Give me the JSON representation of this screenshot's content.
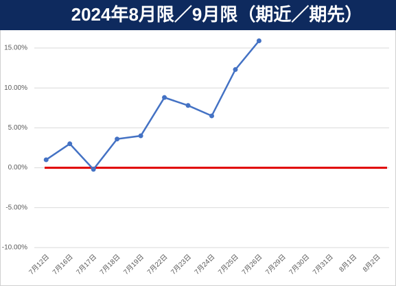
{
  "chart_data": {
    "type": "line",
    "title": "2024年8月限／9月限（期近／期先）",
    "categories": [
      "7月12日",
      "7月16日",
      "7月17日",
      "7月18日",
      "7月19日",
      "7月22日",
      "7月23日",
      "7月24日",
      "7月25日",
      "7月26日",
      "7月29日",
      "7月30日",
      "7月31日",
      "8月1日",
      "8月2日"
    ],
    "values": [
      1.0,
      3.0,
      -0.2,
      3.6,
      4.0,
      8.8,
      7.8,
      6.5,
      12.3,
      15.9,
      null,
      null,
      null,
      null,
      null
    ],
    "color": "#4472c4",
    "zero_line_color": "#e00000",
    "ylim": [
      -10,
      15
    ],
    "yticks": [
      {
        "value": -10,
        "label": "-10.00%"
      },
      {
        "value": -5,
        "label": "-5.00%"
      },
      {
        "value": 0,
        "label": "0.00%"
      },
      {
        "value": 5,
        "label": "5.00%"
      },
      {
        "value": 10,
        "label": "10.00%"
      },
      {
        "value": 15,
        "label": "15.00%"
      }
    ],
    "grid": true
  }
}
